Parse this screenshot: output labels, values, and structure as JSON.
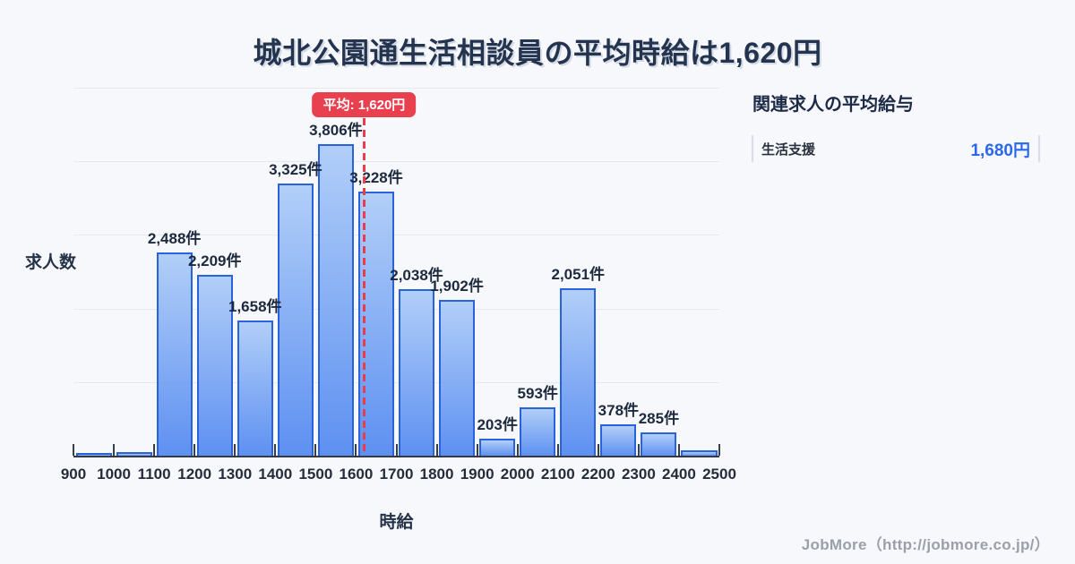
{
  "page": {
    "title": "城北公園通生活相談員の平均時給は1,620円"
  },
  "chart_data": {
    "type": "bar",
    "title": "城北公園通生活相談員の平均時給は1,620円",
    "xlabel": "時給",
    "ylabel": "求人数",
    "xlim": [
      900,
      2500
    ],
    "ylim": [
      0,
      4500
    ],
    "grid_interval": 900,
    "bin_width": 100,
    "x_tick_labels": [
      "900",
      "1000",
      "1100",
      "1200",
      "1300",
      "1400",
      "1500",
      "1600",
      "1700",
      "1800",
      "1900",
      "2000",
      "2100",
      "2200",
      "2300",
      "2400",
      "2500"
    ],
    "categories": [
      900,
      1000,
      1100,
      1200,
      1300,
      1400,
      1500,
      1600,
      1700,
      1800,
      1900,
      2000,
      2100,
      2200,
      2300,
      2400
    ],
    "values": [
      30,
      40,
      2488,
      2209,
      1658,
      3325,
      3806,
      3228,
      2038,
      1902,
      203,
      593,
      2051,
      378,
      285,
      70
    ],
    "bar_labels": [
      "",
      "",
      "2,488件",
      "2,209件",
      "1,658件",
      "3,325件",
      "3,806件",
      "3,228件",
      "2,038件",
      "1,902件",
      "203件",
      "593件",
      "2,051件",
      "378件",
      "285件",
      ""
    ],
    "average_line": {
      "x": 1620,
      "label": "平均: 1,620円"
    },
    "legend": "none",
    "grid": "horizontal"
  },
  "side_panel": {
    "heading": "関連求人の平均給与",
    "items": [
      {
        "label": "生活支援",
        "value": "1,680円"
      }
    ]
  },
  "footer": {
    "credit": "JobMore（http://jobmore.co.jp/）"
  },
  "colors": {
    "background": "#f7f8fc",
    "bar_fill_top": "#aacaf8",
    "bar_fill_bottom": "#4d85f0",
    "bar_border": "#2a63d9",
    "average_red": "#e8404e",
    "value_blue": "#2968ec",
    "text_dark": "#24344f",
    "gridline": "#e4e8f1",
    "footer_gray": "#9b9fa7"
  }
}
